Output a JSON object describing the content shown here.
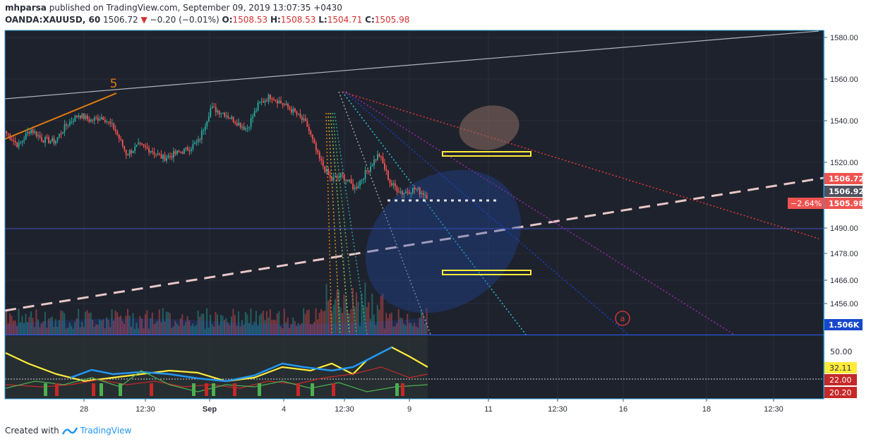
{
  "header": {
    "author": "mhparsa",
    "published": "published on TradingView.com, September 09, 2019 13:07:35 +0430",
    "symbol": "OANDA:XAUUSD, 60",
    "last": "1506.72",
    "change": "−0.20 (−0.01%)",
    "o_label": "O:",
    "o": "1508.53",
    "h_label": "H:",
    "h": "1508.53",
    "l_label": "L:",
    "l": "1504.71",
    "c_label": "C:",
    "c": "1505.98"
  },
  "footer": {
    "created_with": "Created with",
    "brand": "TradingView"
  },
  "annotations": {
    "wave5": "5",
    "wave_a": "a",
    "pct": "−2.64%"
  },
  "colors": {
    "bg": "#1e222d",
    "up": "#26a69a",
    "down": "#ef5350",
    "accent_blue": "#1848cc",
    "yellow": "#ffeb3b"
  },
  "chart_data": {
    "type": "candlestick",
    "symbol": "OANDA:XAUUSD",
    "interval": "60",
    "ylim": [
      1447,
      1585
    ],
    "y_ticks": [
      "1580.00",
      "1560.00",
      "1540.00",
      "1520.00",
      "1490.00",
      "1478.00",
      "1466.00",
      "1456.00"
    ],
    "x_ticks": [
      "28",
      "12:30",
      "Sep",
      "4",
      "12:30",
      "9",
      "11",
      "12:30",
      "16",
      "18",
      "12:30"
    ],
    "price_labels": [
      "1506.72",
      "1506.92",
      "1505.98"
    ],
    "volume_label": "1.506K",
    "close_path": [
      1534,
      1528,
      1536,
      1531,
      1530,
      1538,
      1543,
      1540,
      1542,
      1536,
      1524,
      1528,
      1526,
      1522,
      1524,
      1526,
      1530,
      1546,
      1544,
      1540,
      1536,
      1548,
      1552,
      1548,
      1544,
      1538,
      1522,
      1512,
      1514,
      1508,
      1516,
      1524,
      1510,
      1506,
      1508,
      1505
    ],
    "oscillator": {
      "ticks": [
        "50.00"
      ],
      "labels": [
        "32.11",
        "22.00",
        "20.20"
      ]
    }
  }
}
